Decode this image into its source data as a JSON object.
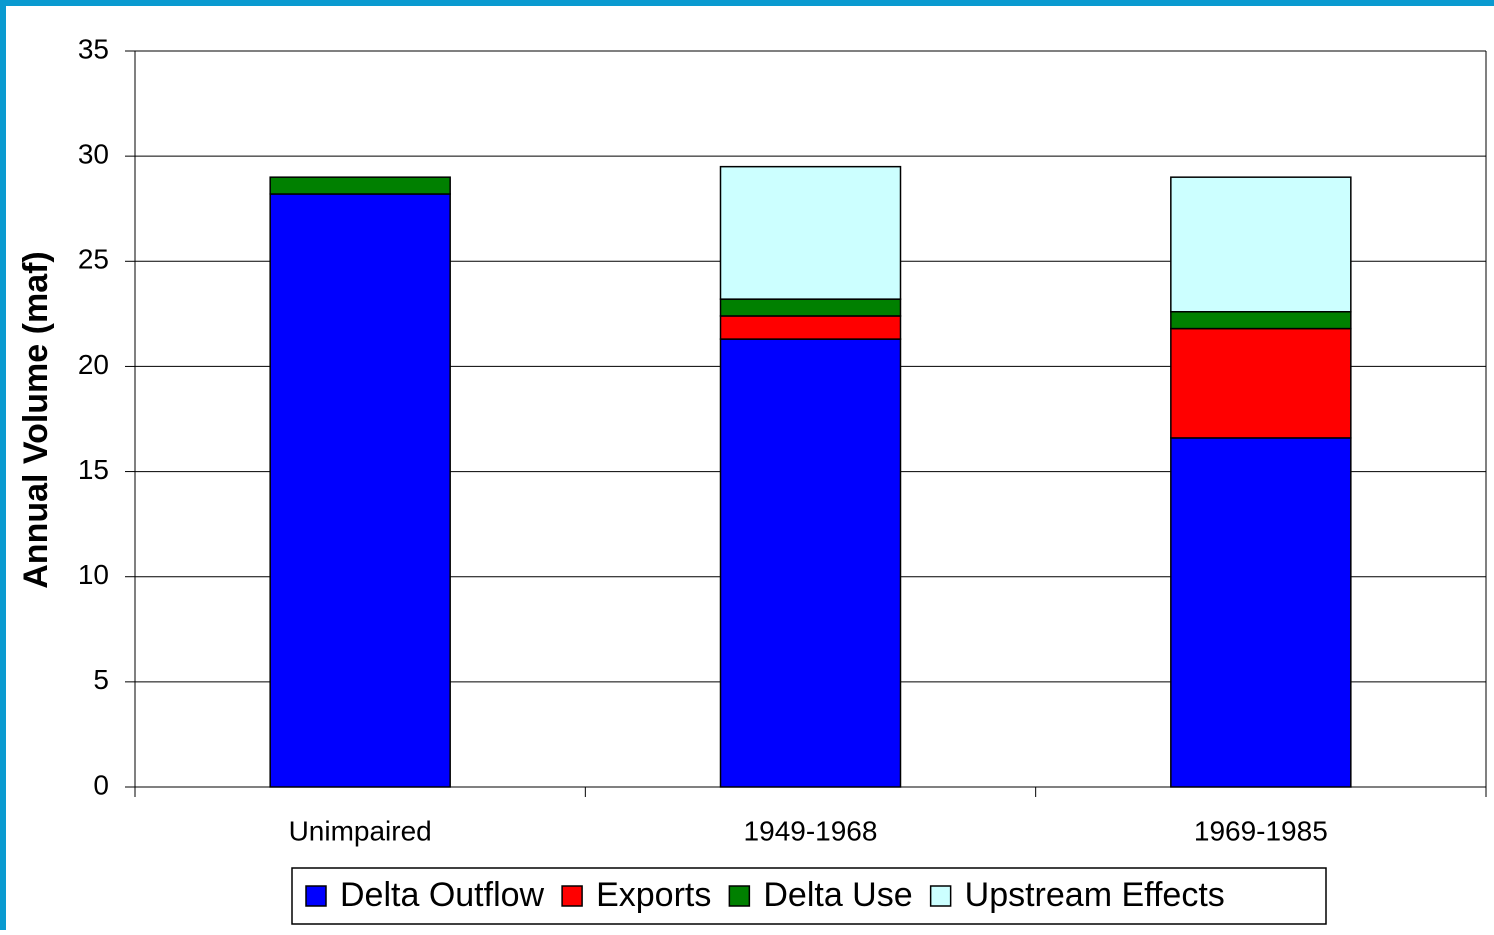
{
  "chart_data": {
    "type": "stacked_bar",
    "y_label": "Annual Volume (maf)",
    "categories": [
      "Unimpaired",
      "1949-1968",
      "1969-1985"
    ],
    "series": [
      {
        "name": "Delta Outflow",
        "color": "#0000ff",
        "values": [
          28.2,
          21.3,
          16.6
        ]
      },
      {
        "name": "Exports",
        "color": "#ff0000",
        "values": [
          0,
          1.1,
          5.2
        ]
      },
      {
        "name": "Delta Use",
        "color": "#008000",
        "values": [
          0.8,
          0.8,
          0.8
        ]
      },
      {
        "name": "Upstream Effects",
        "color": "#ccffff",
        "values": [
          0,
          6.3,
          6.4
        ]
      }
    ],
    "ylim": [
      0,
      35
    ],
    "yticks": [
      0,
      5,
      10,
      15,
      20,
      25,
      30,
      35
    ],
    "grid": true,
    "legend": "bottom"
  }
}
